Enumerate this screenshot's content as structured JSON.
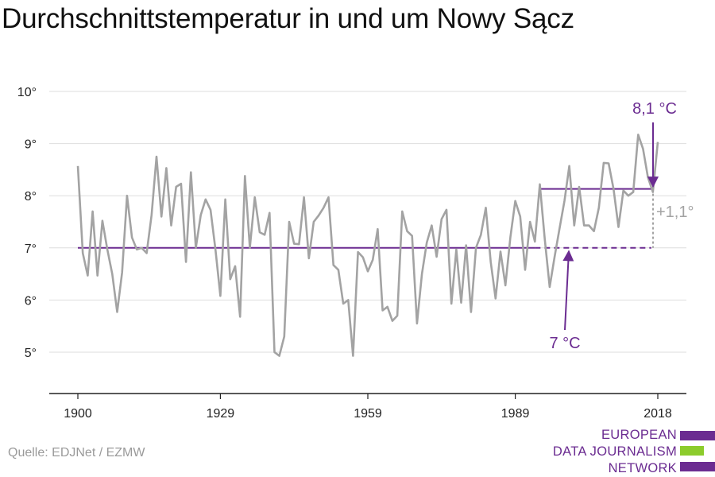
{
  "title": "Durchschnittstemperatur in und um Nowy Sącz",
  "source": "Quelle: EDJNet / EZMW",
  "logo": {
    "lines": [
      "EUROPEAN",
      "DATA JOURNALISM",
      "NETWORK"
    ],
    "colors": [
      "#6b2c91",
      "#8ccc2c",
      "#6b2c91"
    ]
  },
  "colors": {
    "series": "#a3a3a3",
    "accent": "#6b2c91",
    "grid": "#dedede",
    "axis": "#222222",
    "delta": "#a3a3a3"
  },
  "chart_data": {
    "type": "line",
    "ylim": [
      4.0,
      10.3
    ],
    "xlim": [
      1900,
      2018
    ],
    "y_ticks": [
      5,
      6,
      7,
      8,
      9,
      10
    ],
    "y_tick_labels": [
      "5°",
      "6°",
      "7°",
      "8°",
      "9°",
      "10°"
    ],
    "x_ticks": [
      1900,
      1929,
      1959,
      1989,
      2018
    ],
    "x_tick_labels": [
      "1900",
      "1929",
      "1959",
      "1989",
      "2018"
    ],
    "grid": true,
    "x": [
      1900,
      1901,
      1902,
      1903,
      1904,
      1905,
      1906,
      1907,
      1908,
      1909,
      1910,
      1911,
      1912,
      1913,
      1914,
      1915,
      1916,
      1917,
      1918,
      1919,
      1920,
      1921,
      1922,
      1923,
      1924,
      1925,
      1926,
      1927,
      1928,
      1929,
      1930,
      1931,
      1932,
      1933,
      1934,
      1935,
      1936,
      1937,
      1938,
      1939,
      1940,
      1941,
      1942,
      1943,
      1944,
      1945,
      1946,
      1947,
      1948,
      1949,
      1950,
      1951,
      1952,
      1953,
      1954,
      1955,
      1956,
      1957,
      1958,
      1959,
      1960,
      1961,
      1962,
      1963,
      1964,
      1965,
      1966,
      1967,
      1968,
      1969,
      1970,
      1971,
      1972,
      1973,
      1974,
      1975,
      1976,
      1977,
      1978,
      1979,
      1980,
      1981,
      1982,
      1983,
      1984,
      1985,
      1986,
      1987,
      1988,
      1989,
      1990,
      1991,
      1992,
      1993,
      1994,
      1995,
      1996,
      1997,
      1998,
      1999,
      2000,
      2001,
      2002,
      2003,
      2004,
      2005,
      2006,
      2007,
      2008,
      2009,
      2010,
      2011,
      2012,
      2013,
      2014,
      2015,
      2016,
      2017,
      2018
    ],
    "series": [
      {
        "values": [
          8.57,
          6.9,
          6.47,
          7.7,
          6.47,
          7.52,
          6.97,
          6.5,
          5.77,
          6.53,
          8.0,
          7.2,
          6.97,
          7.0,
          6.9,
          7.63,
          8.75,
          7.6,
          8.53,
          7.43,
          8.17,
          8.23,
          6.73,
          8.45,
          7.0,
          7.63,
          7.93,
          7.73,
          6.97,
          6.08,
          7.93,
          6.4,
          6.65,
          5.68,
          8.38,
          7.0,
          7.97,
          7.3,
          7.25,
          7.67,
          5.0,
          4.93,
          5.3,
          7.5,
          7.08,
          7.07,
          7.97,
          6.8,
          7.5,
          7.62,
          7.77,
          7.97,
          6.67,
          6.58,
          5.93,
          6.0,
          4.93,
          6.92,
          6.82,
          6.55,
          6.77,
          7.36,
          5.8,
          5.87,
          5.6,
          5.7,
          7.7,
          7.32,
          7.23,
          5.55,
          6.5,
          7.1,
          7.43,
          6.83,
          7.55,
          7.73,
          5.93,
          6.97,
          5.95,
          7.05,
          5.77,
          7.0,
          7.25,
          7.77,
          6.73,
          6.03,
          6.93,
          6.28,
          7.2,
          7.9,
          7.6,
          6.58,
          7.5,
          7.12,
          8.22,
          7.17,
          6.25,
          6.83,
          7.37,
          7.9,
          8.57,
          7.43,
          8.17,
          7.43,
          7.43,
          7.32,
          7.77,
          8.63,
          8.62,
          8.13,
          7.4,
          8.1,
          8.0,
          8.07,
          9.17,
          8.9,
          8.35,
          8.07,
          9.03
        ]
      }
    ],
    "reference": {
      "baseline_value": 7.0,
      "baseline_label": "7 °C",
      "recent_value": 8.13,
      "recent_label": "8,1 °C",
      "recent_from": 1994,
      "baseline_to": 1993,
      "dashed_to": 2017,
      "delta_label": "+1,1°"
    }
  }
}
